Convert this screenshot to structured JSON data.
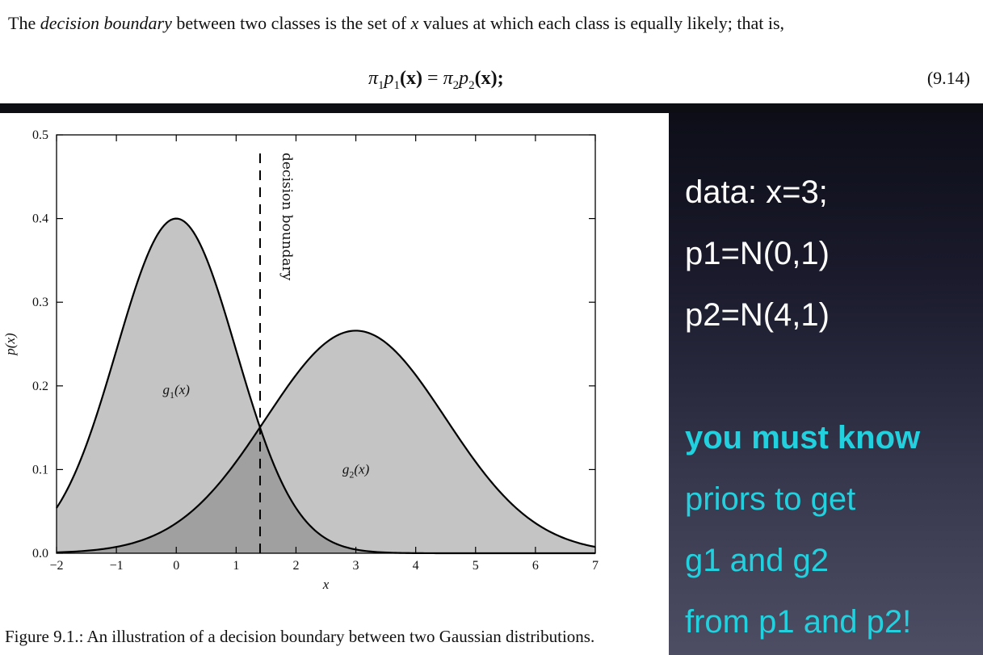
{
  "page": {
    "top_text_parts": [
      "The ",
      "decision boundary",
      " between two classes is the set of ",
      "x",
      " values at which each class is equally likely; that is,"
    ],
    "formula": {
      "pi1": "π",
      "sub1": "1",
      "p1": "p",
      "psub1": "1",
      "x1": "(x)",
      "equals": " = ",
      "pi2": "π",
      "sub2": "2",
      "p2": "p",
      "psub2": "2",
      "x2": "(x);"
    },
    "equation_number": "(9.14)",
    "caption": "Figure 9.1.:  An illustration of a decision boundary between two Gaussian distributions."
  },
  "notes": {
    "line1": "data: x=3;",
    "line2": "p1=N(0,1)",
    "line3": "p2=N(4,1)",
    "line4": "you must know",
    "line5": "priors to get",
    "line6": "g1 and g2",
    "line7": "from p1 and p2!"
  },
  "colors": {
    "fill_light": "#c4c4c4",
    "fill_dark": "#a0a0a0",
    "curve": "#000000",
    "note_white": "#ffffff",
    "note_cyan": "#23d1de"
  },
  "chart_data": {
    "type": "area",
    "xlabel": "x",
    "ylabel": "p(x)",
    "xlim": [
      -2,
      7
    ],
    "ylim": [
      0,
      0.5
    ],
    "x_ticks": [
      -2,
      -1,
      0,
      1,
      2,
      3,
      4,
      5,
      6,
      7
    ],
    "y_ticks": [
      0.0,
      0.1,
      0.2,
      0.3,
      0.4,
      0.5
    ],
    "x_tick_labels": [
      "−2",
      "−1",
      "0",
      "1",
      "2",
      "3",
      "4",
      "5",
      "6",
      "7"
    ],
    "y_tick_labels": [
      "0.0",
      "0.1",
      "0.2",
      "0.3",
      "0.4",
      "0.5"
    ],
    "series": [
      {
        "name": "g1(x)",
        "label_base": "g",
        "label_sub": "1",
        "label_arg": "(x)",
        "mean": 0,
        "sd": 1,
        "peak": 0.4,
        "label_x": 0,
        "label_y": 0.19
      },
      {
        "name": "g2(x)",
        "label_base": "g",
        "label_sub": "2",
        "label_arg": "(x)",
        "mean": 3,
        "sd": 1.5,
        "peak": 0.266,
        "label_x": 3,
        "label_y": 0.095
      }
    ],
    "decision_boundary": {
      "x": 1.4,
      "label": "decision boundary"
    },
    "grid": false
  }
}
